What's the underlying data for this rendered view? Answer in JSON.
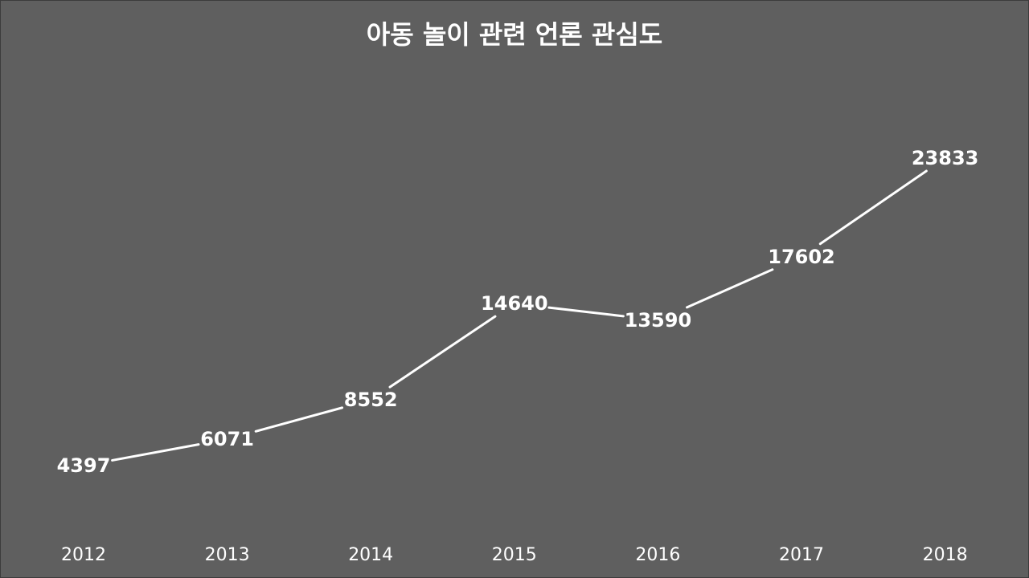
{
  "chart_data": {
    "type": "line",
    "title": "아동 놀이 관련 언론 관심도",
    "xlabel": "",
    "ylabel": "",
    "categories": [
      "2012",
      "2013",
      "2014",
      "2015",
      "2016",
      "2017",
      "2018"
    ],
    "series": [
      {
        "values": [
          4397,
          6071,
          8552,
          14640,
          13590,
          17602,
          23833
        ]
      }
    ],
    "data_labels": true,
    "drop_lines": true,
    "grid": false,
    "legend": "none",
    "colors": {
      "background": "#5f5f5f",
      "line": "#ffffff",
      "text": "#ffffff"
    }
  }
}
